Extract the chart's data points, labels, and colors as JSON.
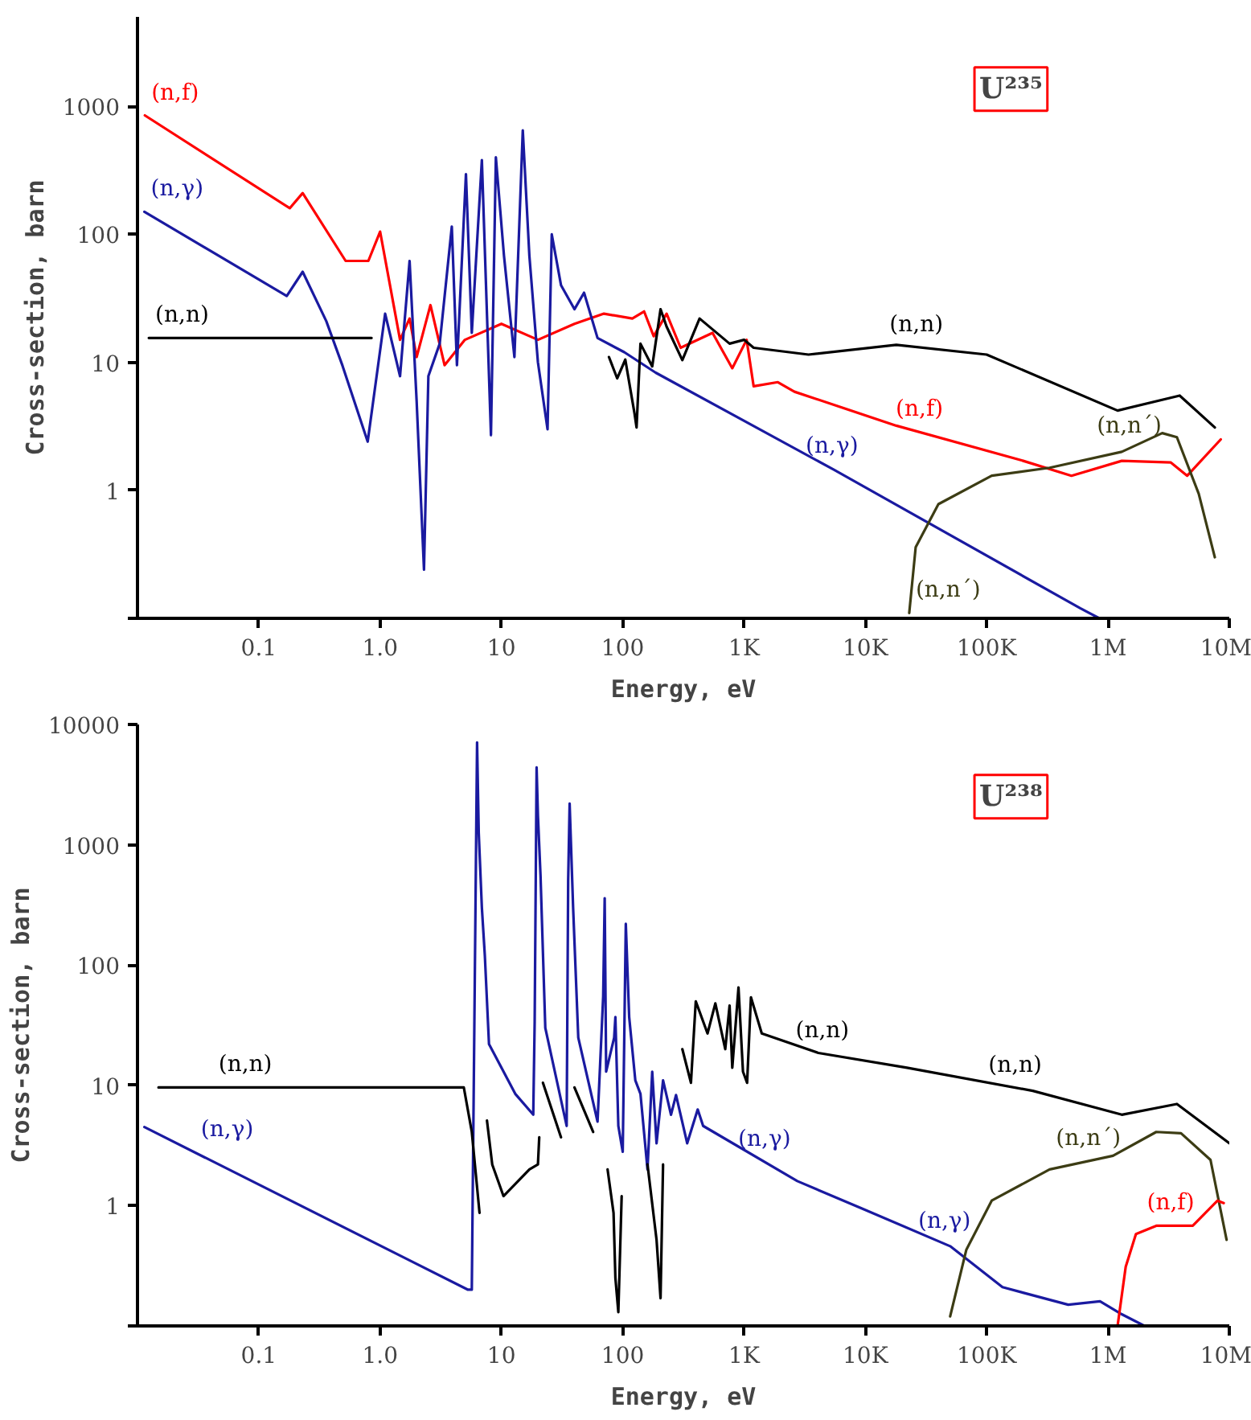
{
  "chart_data": [
    {
      "type": "line",
      "title": "U²³⁵",
      "xlabel": "Energy, eV",
      "ylabel": "Cross-section, barn",
      "log": "xy",
      "xlim": [
        0.01,
        10000000
      ],
      "ylim": [
        0.1,
        5000
      ],
      "xticks": [
        0.1,
        {
          "value": 1,
          "label": "1.0"
        },
        10,
        100,
        {
          "value": 1000,
          "label": "1K"
        },
        {
          "value": 10000,
          "label": "10K"
        },
        {
          "value": 100000,
          "label": "100K"
        },
        {
          "value": 1000000,
          "label": "1M"
        },
        {
          "value": 10000000,
          "label": "10M"
        }
      ],
      "yticks": [
        {
          "value": 0.1,
          "label": null
        },
        1,
        10,
        100,
        1000
      ],
      "series": [
        {
          "name": "(n,f)",
          "color": "#ff0000",
          "x": [
            0.0115,
            0.18,
            0.23,
            0.52,
            0.8,
            1.0,
            1.46,
            1.75,
            2.0,
            2.6,
            3.4,
            5,
            10,
            20,
            40,
            70,
            120,
            150,
            180,
            230,
            300,
            550,
            800,
            1050,
            1200,
            1900,
            2600,
            18000,
            200000,
            500000,
            1300000,
            3300000,
            4500000,
            8500000
          ],
          "values": [
            850,
            160,
            210,
            62,
            62,
            105,
            15,
            22,
            11,
            28,
            9.5,
            15,
            20,
            15,
            20,
            24,
            22,
            25,
            16,
            24,
            13,
            17,
            9,
            15,
            6.5,
            7,
            5.9,
            3.2,
            1.7,
            1.3,
            1.7,
            1.65,
            1.3,
            2.5
          ]
        },
        {
          "name": "(n,γ)",
          "color": "#1a1aa0",
          "x": [
            0.0114,
            0.17,
            0.23,
            0.36,
            0.49,
            0.79,
            1.1,
            1.46,
            1.75,
            2.0,
            2.3,
            2.5,
            3.1,
            3.9,
            4.3,
            5.1,
            5.7,
            6.9,
            8.2,
            9.0,
            10.5,
            12.8,
            15,
            17,
            20,
            24,
            26,
            31,
            40,
            48,
            62,
            103,
            187,
            5500,
            590000,
            850000
          ],
          "values": [
            150,
            33,
            51,
            21,
            9.4,
            2.4,
            24,
            7.8,
            62,
            5,
            0.24,
            7.8,
            14,
            115,
            9.5,
            295,
            17,
            380,
            2.7,
            400,
            68,
            11,
            650,
            68,
            10,
            3,
            100,
            40,
            26,
            35,
            15.5,
            12,
            8.3,
            1.45,
            0.12,
            0.1
          ]
        },
        {
          "name": "(n,n)",
          "color": "#000000",
          "x": [
            0.0124,
            0.85,
            null,
            77,
            90,
            105,
            125,
            130,
            140,
            175,
            205,
            230,
            310,
            430,
            760,
            1000,
            1200,
            3400,
            18000,
            100000,
            1200000,
            3900000,
            7600000
          ],
          "values": [
            15.5,
            15.5,
            null,
            11,
            7.5,
            10.5,
            4.0,
            3.1,
            14,
            9.3,
            26,
            19,
            10.4,
            22,
            14,
            15,
            13,
            11.5,
            13.7,
            11.5,
            4.2,
            5.5,
            3.1
          ]
        },
        {
          "name": "(n,n´)",
          "color": "#3c3c14",
          "x": [
            23000,
            26000,
            40000,
            110000,
            330000,
            1300000,
            2800000,
            3700000,
            5600000,
            7600000
          ],
          "values": [
            0.11,
            0.36,
            0.78,
            1.3,
            1.5,
            2.0,
            2.8,
            2.6,
            0.94,
            0.3
          ]
        }
      ],
      "annotations": [
        "(n,n)",
        "(n,f)",
        "(n,γ)",
        "(n,n´)"
      ]
    },
    {
      "type": "line",
      "title": "U²³⁸",
      "xlabel": "Energy, eV",
      "ylabel": "Cross-section, barn",
      "log": "xy",
      "xlim": [
        0.01,
        10000000
      ],
      "ylim": [
        0.1,
        10000
      ],
      "xticks": [
        0.1,
        {
          "value": 1,
          "label": "1.0"
        },
        10,
        100,
        {
          "value": 1000,
          "label": "1K"
        },
        {
          "value": 10000,
          "label": "10K"
        },
        {
          "value": 100000,
          "label": "100K"
        },
        {
          "value": 1000000,
          "label": "1M"
        },
        {
          "value": 10000000,
          "label": "10M"
        }
      ],
      "yticks": [
        {
          "value": 0.1,
          "label": null
        },
        1,
        10,
        100,
        1000,
        10000
      ],
      "series": [
        {
          "name": "(n,γ)",
          "color": "#1a1aa0",
          "x": [
            0.0114,
            5.3,
            5.7,
            6.3,
            6.5,
            6.9,
            7.3,
            7.9,
            13,
            18.3,
            18.8,
            19.5,
            20,
            21,
            23,
            34.5,
            35.5,
            36.5,
            39,
            43,
            62,
            69,
            71,
            73,
            85,
            87,
            92,
            100,
            106,
            113,
            127,
            140,
            160,
            175,
            190,
            215,
            250,
            275,
            340,
            415,
            460,
            2750,
            9300,
            50000,
            135000,
            470000,
            860000,
            1300000,
            2000000
          ],
          "values": [
            4.5,
            0.2,
            0.2,
            7100,
            1270,
            300,
            120,
            22,
            8.5,
            5.7,
            34,
            4400,
            1750,
            560,
            30,
            4.6,
            500,
            2200,
            300,
            25,
            5,
            55,
            360,
            13,
            25,
            37,
            4.6,
            2.8,
            220,
            37,
            11,
            8.5,
            2.0,
            13,
            3.3,
            11,
            5.7,
            8.3,
            3.3,
            6.3,
            4.6,
            1.6,
            0.95,
            0.46,
            0.21,
            0.15,
            0.16,
            0.125,
            0.1
          ]
        },
        {
          "name": "(n,n)",
          "color": "#000000",
          "x": [
            0.0149,
            4.9,
            5.7,
            6.1,
            6.6,
            null,
            7.6,
            8.4,
            10.4,
            17,
            20,
            20.5,
            null,
            22,
            31,
            null,
            40,
            57,
            null,
            75,
            84,
            87,
            92,
            98,
            null,
            160,
            190,
            205,
            215,
            null,
            310,
            365,
            400,
            500,
            580,
            700,
            760,
            800,
            900,
            980,
            1060,
            1140,
            1400,
            4100,
            22000,
            240000,
            1300000,
            3700000,
            10000000
          ],
          "values": [
            9.6,
            9.6,
            4.1,
            2.0,
            0.87,
            null,
            5.1,
            2.2,
            1.2,
            2.0,
            2.2,
            3.7,
            null,
            10.5,
            3.7,
            null,
            9.6,
            4.1,
            null,
            2.0,
            0.87,
            0.25,
            0.13,
            1.2,
            null,
            2.2,
            0.52,
            0.17,
            2.2,
            null,
            20,
            10.5,
            50,
            27,
            48,
            20,
            46,
            14,
            65,
            13,
            10.5,
            54,
            27,
            18.6,
            14,
            9.0,
            5.7,
            7.0,
            3.3
          ]
        },
        {
          "name": "(n,n´)",
          "color": "#3c3c14",
          "x": [
            50000,
            68000,
            110000,
            330000,
            1100000,
            2500000,
            4000000,
            7000000,
            9500000
          ],
          "values": [
            0.12,
            0.43,
            1.1,
            2.0,
            2.6,
            4.1,
            4.0,
            2.4,
            0.52
          ]
        },
        {
          "name": "(n,f)",
          "color": "#ff0000",
          "x": [
            1200000,
            1400000,
            1700000,
            2500000,
            5000000,
            8000000,
            9000000
          ],
          "values": [
            0.1,
            0.31,
            0.58,
            0.68,
            0.68,
            1.1,
            1.05
          ]
        }
      ],
      "annotations": [
        "(n,n)",
        "(n,γ)",
        "(n,n)",
        "(n,γ)"
      ]
    }
  ]
}
